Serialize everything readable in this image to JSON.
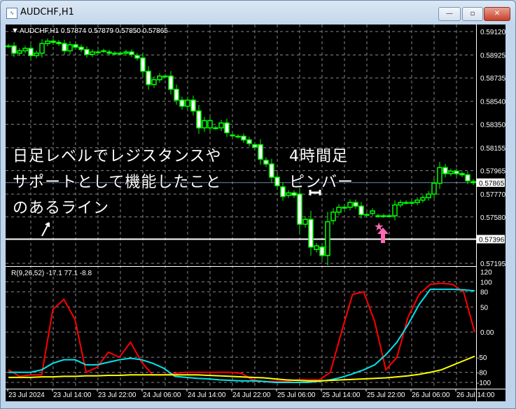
{
  "window": {
    "title": "AUDCHF,H1",
    "minimize": "—",
    "maximize": "▫",
    "close": "✕"
  },
  "chart": {
    "header": "AUDCHF,H1  0.57874 0.57879 0.57850 0.57865",
    "price_labels": [
      "0.59120",
      "0.58925",
      "0.58735",
      "0.58540",
      "0.58350",
      "0.58155",
      "0.57965",
      "0.57770",
      "0.57580",
      "0.57195"
    ],
    "price_values": [
      0.5912,
      0.58925,
      0.58735,
      0.5854,
      0.5835,
      0.58155,
      0.57965,
      0.5777,
      0.5758,
      0.57195
    ],
    "current_price": "0.57865",
    "line_price": "0.57396",
    "colors": {
      "candle": "#00ff00",
      "bear_body": "#ffffff",
      "bull_body": "#000000",
      "grid": "#8a8a8a",
      "annotation": "#ffffff",
      "marker": "#ff69b4"
    },
    "candles_open_close": [
      [
        0.59,
        0.59
      ],
      [
        0.59,
        0.5894
      ],
      [
        0.5894,
        0.5896
      ],
      [
        0.5896,
        0.5898
      ],
      [
        0.5898,
        0.5892
      ],
      [
        0.5892,
        0.5894
      ],
      [
        0.5894,
        0.5902
      ],
      [
        0.5902,
        0.5904
      ],
      [
        0.5904,
        0.5903
      ],
      [
        0.5903,
        0.5902
      ],
      [
        0.5902,
        0.5896
      ],
      [
        0.5896,
        0.5901
      ],
      [
        0.5901,
        0.5899
      ],
      [
        0.5899,
        0.5897
      ],
      [
        0.5897,
        0.5893
      ],
      [
        0.5893,
        0.5895
      ],
      [
        0.5895,
        0.5895
      ],
      [
        0.5896,
        0.5896
      ],
      [
        0.5895,
        0.5894
      ],
      [
        0.5894,
        0.5894
      ],
      [
        0.5894,
        0.5894
      ],
      [
        0.5894,
        0.5895
      ],
      [
        0.5895,
        0.5893
      ],
      [
        0.5892,
        0.589
      ],
      [
        0.589,
        0.5879
      ],
      [
        0.5879,
        0.5868
      ],
      [
        0.5868,
        0.5872
      ],
      [
        0.5872,
        0.5875
      ],
      [
        0.5875,
        0.5875
      ],
      [
        0.5875,
        0.5864
      ],
      [
        0.5864,
        0.5855
      ],
      [
        0.5855,
        0.585
      ],
      [
        0.585,
        0.5855
      ],
      [
        0.5855,
        0.5846
      ],
      [
        0.5846,
        0.5832
      ],
      [
        0.5832,
        0.5838
      ],
      [
        0.5832,
        0.5838
      ],
      [
        0.5832,
        0.5832
      ],
      [
        0.5832,
        0.5836
      ],
      [
        0.5836,
        0.5828
      ],
      [
        0.5826,
        0.5826
      ],
      [
        0.5825,
        0.5825
      ],
      [
        0.5825,
        0.5822
      ],
      [
        0.5822,
        0.5819
      ],
      [
        0.5818,
        0.5816
      ],
      [
        0.5818,
        0.5806
      ],
      [
        0.5805,
        0.5802
      ],
      [
        0.5802,
        0.5791
      ],
      [
        0.5791,
        0.5784
      ],
      [
        0.5783,
        0.5775
      ],
      [
        0.5776,
        0.5778
      ],
      [
        0.5778,
        0.5776
      ],
      [
        0.5777,
        0.5752
      ],
      [
        0.5752,
        0.5756
      ],
      [
        0.5756,
        0.5733
      ],
      [
        0.5731,
        0.5734
      ],
      [
        0.5733,
        0.5726
      ],
      [
        0.5726,
        0.5754
      ],
      [
        0.5755,
        0.5762
      ],
      [
        0.5762,
        0.5766
      ],
      [
        0.5766,
        0.5766
      ],
      [
        0.5766,
        0.577
      ],
      [
        0.577,
        0.5767
      ],
      [
        0.5767,
        0.576
      ],
      [
        0.576,
        0.576
      ],
      [
        0.5761,
        0.5763
      ],
      [
        0.5759,
        0.5759
      ],
      [
        0.5759,
        0.5759
      ],
      [
        0.5759,
        0.5759
      ],
      [
        0.5759,
        0.5768
      ],
      [
        0.5768,
        0.577
      ],
      [
        0.577,
        0.577
      ],
      [
        0.577,
        0.577
      ],
      [
        0.577,
        0.5772
      ],
      [
        0.5772,
        0.5774
      ],
      [
        0.5774,
        0.5777
      ],
      [
        0.5777,
        0.5786
      ],
      [
        0.5786,
        0.5799
      ],
      [
        0.5799,
        0.5794
      ],
      [
        0.5794,
        0.5796
      ],
      [
        0.5796,
        0.5794
      ],
      [
        0.5794,
        0.5793
      ],
      [
        0.5793,
        0.5788
      ],
      [
        0.57874,
        0.57865
      ]
    ],
    "annotations": {
      "left": [
        "日足レベルでレジスタンスや",
        "サポートとして機能したこと",
        "のあるライン"
      ],
      "right": [
        "4時間足",
        "ピンバー"
      ]
    }
  },
  "indicator": {
    "label": "R(9,26,52) -17.1 77.1 -8.8",
    "axis_labels": [
      "120",
      "100",
      "80",
      "50",
      "0.00",
      "-50",
      "-80",
      "-100"
    ],
    "axis_values": [
      120,
      100,
      80,
      50,
      0,
      -50,
      -80,
      -100
    ],
    "series": [
      {
        "color": "#ff0000",
        "values": [
          -75,
          -88,
          -85,
          -85,
          45,
          65,
          25,
          -80,
          -70,
          -40,
          -50,
          -20,
          -60,
          -85,
          -85,
          -82,
          -80,
          -80,
          -80,
          -80,
          -80,
          -82,
          -95,
          -98,
          -98,
          -98,
          -95,
          -95,
          -95,
          -80,
          0,
          75,
          80,
          20,
          -75,
          -50,
          30,
          75,
          95,
          97,
          95,
          80,
          0
        ]
      },
      {
        "color": "#00e5ee",
        "values": [
          -80,
          -80,
          -80,
          -75,
          -62,
          -55,
          -55,
          -65,
          -65,
          -60,
          -55,
          -52,
          -55,
          -62,
          -72,
          -88,
          -90,
          -92,
          -93,
          -95,
          -96,
          -97,
          -97,
          -98,
          -100,
          -100,
          -100,
          -100,
          -98,
          -95,
          -90,
          -83,
          -75,
          -65,
          -45,
          -20,
          15,
          55,
          85,
          85,
          85,
          84,
          82
        ]
      },
      {
        "color": "#ffff00",
        "values": [
          -90,
          -90,
          -90,
          -89,
          -89,
          -88,
          -88,
          -87,
          -87,
          -86,
          -86,
          -85,
          -85,
          -85,
          -85,
          -85,
          -85,
          -85,
          -86,
          -87,
          -88,
          -89,
          -90,
          -91,
          -93,
          -95,
          -96,
          -97,
          -97,
          -96,
          -95,
          -94,
          -93,
          -92,
          -91,
          -89,
          -87,
          -84,
          -80,
          -75,
          -66,
          -57,
          -48
        ]
      }
    ]
  },
  "time_axis": [
    "23 Jul 2024",
    "23 Jul 14:00",
    "23 Jul 22:00",
    "24 Jul 06:00",
    "24 Jul 14:00",
    "24 Jul 22:00",
    "25 Jul 06:00",
    "25 Jul 14:00",
    "25 Jul 22:00",
    "26 Jul 06:00",
    "26 Jul 14:00"
  ]
}
